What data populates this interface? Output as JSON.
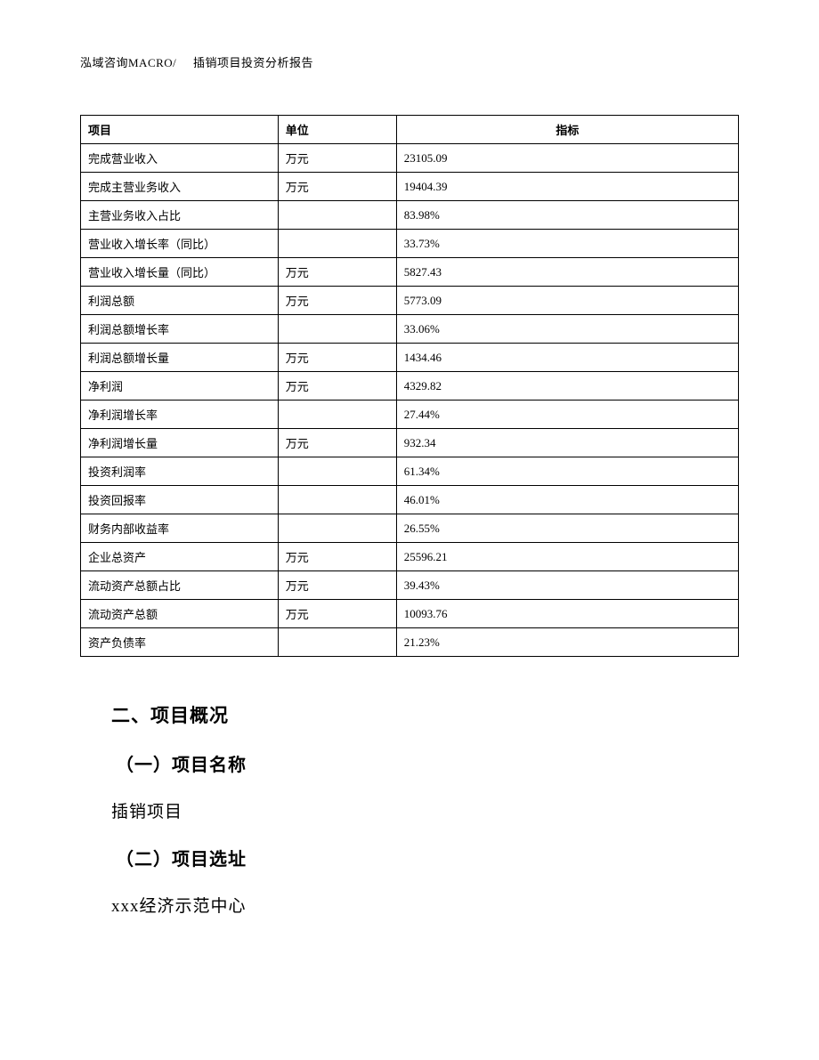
{
  "header": {
    "company": "泓域咨询MACRO/",
    "title": "插销项目投资分析报告"
  },
  "table": {
    "columns": [
      "项目",
      "单位",
      "指标"
    ],
    "rows": [
      {
        "item": "完成营业收入",
        "unit": "万元",
        "indicator": "23105.09"
      },
      {
        "item": "完成主营业务收入",
        "unit": "万元",
        "indicator": "19404.39"
      },
      {
        "item": "主营业务收入占比",
        "unit": "",
        "indicator": "83.98%"
      },
      {
        "item": "营业收入增长率（同比）",
        "unit": "",
        "indicator": "33.73%"
      },
      {
        "item": "营业收入增长量（同比）",
        "unit": "万元",
        "indicator": "5827.43"
      },
      {
        "item": "利润总额",
        "unit": "万元",
        "indicator": "5773.09"
      },
      {
        "item": "利润总额增长率",
        "unit": "",
        "indicator": "33.06%"
      },
      {
        "item": "利润总额增长量",
        "unit": "万元",
        "indicator": "1434.46"
      },
      {
        "item": "净利润",
        "unit": "万元",
        "indicator": "4329.82"
      },
      {
        "item": "净利润增长率",
        "unit": "",
        "indicator": "27.44%"
      },
      {
        "item": "净利润增长量",
        "unit": "万元",
        "indicator": "932.34"
      },
      {
        "item": "投资利润率",
        "unit": "",
        "indicator": "61.34%"
      },
      {
        "item": "投资回报率",
        "unit": "",
        "indicator": "46.01%"
      },
      {
        "item": "财务内部收益率",
        "unit": "",
        "indicator": "26.55%"
      },
      {
        "item": "企业总资产",
        "unit": "万元",
        "indicator": "25596.21"
      },
      {
        "item": "流动资产总额占比",
        "unit": "万元",
        "indicator": "39.43%"
      },
      {
        "item": "流动资产总额",
        "unit": "万元",
        "indicator": "10093.76"
      },
      {
        "item": "资产负债率",
        "unit": "",
        "indicator": "21.23%"
      }
    ]
  },
  "sections": {
    "overview_heading": "二、项目概况",
    "name_heading": "（一）项目名称",
    "name_text": "插销项目",
    "location_heading": "（二）项目选址",
    "location_text": "xxx经济示范中心"
  }
}
